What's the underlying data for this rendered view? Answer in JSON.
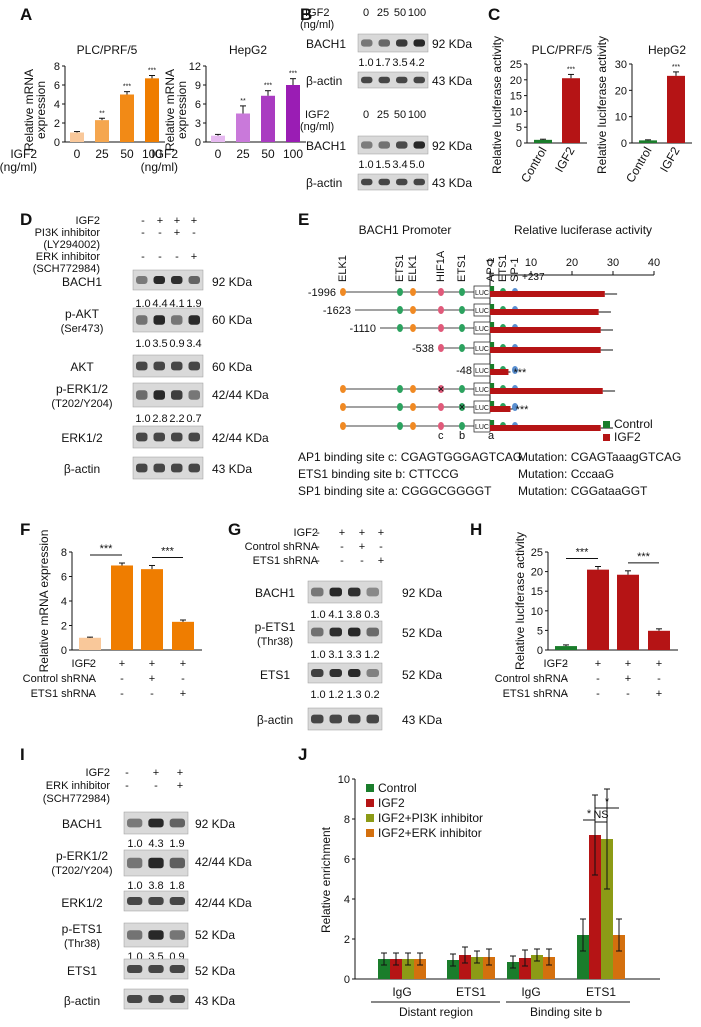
{
  "panel_labels": {
    "A": "A",
    "B": "B",
    "C": "C",
    "D": "D",
    "E": "E",
    "F": "F",
    "G": "G",
    "H": "H",
    "I": "I",
    "J": "J"
  },
  "colors": {
    "orange_light": "#f9c89a",
    "orange_mid": "#f5a64e",
    "orange_dark": "#f28a16",
    "orange_darkest": "#ef7d00",
    "purple_1": "#e6b9f0",
    "purple_2": "#c979da",
    "purple_3": "#a93bc1",
    "purple_4": "#9a1db4",
    "green": "#1a7d2b",
    "red": "#b51415",
    "olive": "#8c9b16",
    "brown": "#d4700e"
  },
  "chart_data": [
    {
      "id": "A1",
      "type": "bar",
      "title": "PLC/PRF/5",
      "ylabel": "Relative mRNA expression",
      "xlabel": "IGF2 (ng/ml)",
      "categories": [
        "0",
        "25",
        "50",
        "100"
      ],
      "values": [
        1.0,
        2.3,
        5.0,
        6.7
      ],
      "errors": [
        0.1,
        0.2,
        0.3,
        0.3
      ],
      "sig": [
        "",
        "**",
        "***",
        "***"
      ],
      "ylim": [
        0,
        8
      ],
      "yticks": [
        "0",
        "2",
        "4",
        "6",
        "8"
      ]
    },
    {
      "id": "A2",
      "type": "bar",
      "title": "HepG2",
      "ylabel": "Relative mRNA expression",
      "xlabel": "IGF2 (ng/ml)",
      "categories": [
        "0",
        "25",
        "50",
        "100"
      ],
      "values": [
        1.0,
        4.5,
        7.3,
        9.0
      ],
      "errors": [
        0.2,
        1.2,
        0.8,
        1.0
      ],
      "sig": [
        "",
        "**",
        "***",
        "***"
      ],
      "ylim": [
        0,
        12
      ],
      "yticks": [
        "0",
        "3",
        "6",
        "9",
        "12"
      ]
    },
    {
      "id": "C1",
      "type": "bar",
      "title": "PLC/PRF/5",
      "ylabel": "Relative luciferase activity",
      "categories": [
        "Control",
        "IGF2"
      ],
      "values": [
        1.0,
        20.5
      ],
      "errors": [
        0.2,
        1.2
      ],
      "sig": [
        "",
        "***"
      ],
      "ylim": [
        0,
        25
      ],
      "yticks": [
        "0",
        "5",
        "10",
        "15",
        "20",
        "25"
      ]
    },
    {
      "id": "C2",
      "type": "bar",
      "title": "HepG2",
      "ylabel": "Relative luciferase activity",
      "categories": [
        "Control",
        "IGF2"
      ],
      "values": [
        1.0,
        25.5
      ],
      "errors": [
        0.2,
        1.5
      ],
      "sig": [
        "",
        "***"
      ],
      "ylim": [
        0,
        30
      ],
      "yticks": [
        "0",
        "10",
        "20",
        "30"
      ]
    },
    {
      "id": "E",
      "type": "bar",
      "orientation": "horizontal",
      "title": "Relative luciferase activity",
      "xlim": [
        0,
        40
      ],
      "xticks": [
        "0",
        "10",
        "20",
        "30",
        "40"
      ],
      "constructs": [
        "-1996",
        "-1623",
        "-1110",
        "-538",
        "-48",
        "",
        "",
        ""
      ],
      "series": [
        {
          "name": "Control",
          "values": [
            1,
            1,
            1,
            1,
            1,
            1,
            1,
            1
          ]
        },
        {
          "name": "IGF2",
          "values": [
            28,
            26.5,
            27,
            27,
            4.5,
            27.5,
            5,
            27
          ],
          "errors": [
            3,
            3,
            3,
            3,
            0.5,
            3,
            0.5,
            3
          ]
        }
      ],
      "sig": [
        "",
        "",
        "",
        "",
        "***",
        "",
        "***",
        ""
      ]
    },
    {
      "id": "F",
      "type": "bar",
      "ylabel": "Relative mRNA expression",
      "values": [
        1.0,
        6.9,
        6.6,
        2.3
      ],
      "errors": [
        0.05,
        0.2,
        0.3,
        0.15
      ],
      "ylim": [
        0,
        8
      ],
      "yticks": [
        "0",
        "2",
        "4",
        "6",
        "8"
      ],
      "sig_pairs": [
        "***",
        "***"
      ]
    },
    {
      "id": "H",
      "type": "bar",
      "ylabel": "Relative luciferase activity",
      "values": [
        1.0,
        20.5,
        19.2,
        4.9
      ],
      "errors": [
        0.3,
        0.8,
        1.0,
        0.5
      ],
      "ylim": [
        0,
        25
      ],
      "yticks": [
        "0",
        "5",
        "10",
        "15",
        "20",
        "25"
      ],
      "sig_pairs": [
        "***",
        "***"
      ]
    },
    {
      "id": "J",
      "type": "bar",
      "ylabel": "Relative enrichment",
      "categories": [
        "IgG",
        "ETS1",
        "IgG",
        "ETS1"
      ],
      "groups": [
        "Distant region",
        "Binding site b"
      ],
      "series": [
        {
          "name": "Control",
          "values": [
            1.0,
            0.95,
            0.85,
            2.2
          ],
          "errors": [
            0.3,
            0.3,
            0.3,
            0.8
          ]
        },
        {
          "name": "IGF2",
          "values": [
            1.0,
            1.2,
            1.05,
            7.2
          ],
          "errors": [
            0.3,
            0.4,
            0.4,
            2.0
          ]
        },
        {
          "name": "IGF2+PI3K inhibitor",
          "values": [
            1.0,
            1.1,
            1.2,
            7.0
          ],
          "errors": [
            0.3,
            0.3,
            0.3,
            2.5
          ]
        },
        {
          "name": "IGF2+ERK inhibitor",
          "values": [
            1.0,
            1.1,
            1.1,
            2.2
          ],
          "errors": [
            0.3,
            0.4,
            0.4,
            0.8
          ]
        }
      ],
      "ylim": [
        0,
        10
      ],
      "yticks": [
        "0",
        "2",
        "4",
        "6",
        "8",
        "10"
      ],
      "sig": [
        "*",
        "NS",
        "*"
      ]
    }
  ],
  "panelA": {
    "xlab1": "IGF2",
    "xlab2": "(ng/ml)",
    "ylab1": "Relative mRNA",
    "ylab2": "expression"
  },
  "panelB": {
    "igf2": "IGF2",
    "ngml": "(ng/ml)",
    "doses": [
      "0",
      "25",
      "50",
      "100"
    ],
    "bach1": "BACH1",
    "actin": "β-actin",
    "kda92": "92 KDa",
    "kda43": "43 KDa",
    "quant1": [
      "1.0",
      "1.7",
      "3.5",
      "4.2"
    ],
    "quant2": [
      "1.0",
      "1.5",
      "3.4",
      "5.0"
    ]
  },
  "panelC": {
    "ylab": "Relative luciferase activity"
  },
  "panelD": {
    "treat_rows": [
      {
        "label": "IGF2",
        "marks": [
          "-",
          "+",
          "+",
          "+"
        ]
      },
      {
        "label": "PI3K inhibitor",
        "marks": [
          "-",
          "-",
          "+",
          "-"
        ]
      },
      {
        "label": "(LY294002)",
        "marks": []
      },
      {
        "label": "ERK inhibitor",
        "marks": [
          "-",
          "-",
          "-",
          "+"
        ]
      },
      {
        "label": "(SCH772984)",
        "marks": []
      }
    ],
    "blots": [
      {
        "name": "BACH1",
        "sub": "",
        "kda": "92 KDa",
        "quant": [
          "1.0",
          "4.4",
          "4.1",
          "1.9"
        ]
      },
      {
        "name": "p-AKT",
        "sub": "(Ser473)",
        "kda": "60 KDa",
        "quant": [
          "1.0",
          "3.5",
          "0.9",
          "3.4"
        ]
      },
      {
        "name": "AKT",
        "sub": "",
        "kda": "60 KDa",
        "quant": []
      },
      {
        "name": "p-ERK1/2",
        "sub": "(T202/Y204)",
        "kda": "42/44 KDa",
        "quant": [
          "1.0",
          "2.8",
          "2.2",
          "0.7"
        ]
      },
      {
        "name": "ERK1/2",
        "sub": "",
        "kda": "42/44 KDa",
        "quant": []
      },
      {
        "name": "β-actin",
        "sub": "",
        "kda": "43 KDa",
        "quant": []
      }
    ]
  },
  "panelE": {
    "promoter": "BACH1 Promoter",
    "luc": "LUC",
    "plus237": "+237",
    "sites": [
      "ELK1",
      "ETS1",
      "ELK1",
      "HIF1A",
      "ETS1",
      "AP-1",
      "ETS1",
      "SP-1"
    ],
    "site_letters": [
      "c",
      "b",
      "a"
    ],
    "legend": [
      "Control",
      "IGF2"
    ],
    "seqs": [
      {
        "left": "AP1 binding site c: CGAGTGGGAGTCAG",
        "right": "Mutation: CGAGTaaagGTCAG"
      },
      {
        "left": "ETS1 binding site b: CTTCCG",
        "right": "Mutation: CccaaG"
      },
      {
        "left": "SP1 binding site a: CGGGCGGGGT",
        "right": "Mutation: CGGataaGGT"
      }
    ]
  },
  "panelF": {
    "rows": [
      {
        "label": "IGF2",
        "marks": [
          "-",
          "+",
          "+",
          "+"
        ]
      },
      {
        "label": "Control shRNA",
        "marks": [
          "-",
          "-",
          "+",
          "-"
        ]
      },
      {
        "label": "ETS1 shRNA",
        "marks": [
          "-",
          "-",
          "-",
          "+"
        ]
      }
    ]
  },
  "panelG": {
    "treat_rows": [
      {
        "label": "IGF2",
        "marks": [
          "-",
          "+",
          "+",
          "+"
        ]
      },
      {
        "label": "Control shRNA",
        "marks": [
          "-",
          "-",
          "+",
          "-"
        ]
      },
      {
        "label": "ETS1 shRNA",
        "marks": [
          "-",
          "-",
          "-",
          "+"
        ]
      }
    ],
    "blots": [
      {
        "name": "BACH1",
        "sub": "",
        "kda": "92 KDa",
        "quant": [
          "1.0",
          "4.1",
          "3.8",
          "0.3"
        ]
      },
      {
        "name": "p-ETS1",
        "sub": "(Thr38)",
        "kda": "52 KDa",
        "quant": [
          "1.0",
          "3.1",
          "3.3",
          "1.2"
        ]
      },
      {
        "name": "ETS1",
        "sub": "",
        "kda": "52 KDa",
        "quant": [
          "1.0",
          "1.2",
          "1.3",
          "0.2"
        ]
      },
      {
        "name": "β-actin",
        "sub": "",
        "kda": "43 KDa",
        "quant": []
      }
    ]
  },
  "panelI": {
    "treat_rows": [
      {
        "label": "IGF2",
        "marks": [
          "-",
          "+",
          "+"
        ]
      },
      {
        "label": "ERK inhibitor",
        "marks": [
          "-",
          "-",
          "+"
        ]
      },
      {
        "label": "(SCH772984)",
        "marks": []
      }
    ],
    "blots": [
      {
        "name": "BACH1",
        "sub": "",
        "kda": "92 KDa",
        "quant": [
          "1.0",
          "4.3",
          "1.9"
        ]
      },
      {
        "name": "p-ERK1/2",
        "sub": "(T202/Y204)",
        "kda": "42/44 KDa",
        "quant": [
          "1.0",
          "3.8",
          "1.8"
        ]
      },
      {
        "name": "ERK1/2",
        "sub": "",
        "kda": "42/44 KDa",
        "quant": []
      },
      {
        "name": "p-ETS1",
        "sub": "(Thr38)",
        "kda": "52 KDa",
        "quant": [
          "1.0",
          "3.5",
          "0.9"
        ]
      },
      {
        "name": "ETS1",
        "sub": "",
        "kda": "52 KDa",
        "quant": []
      },
      {
        "name": "β-actin",
        "sub": "",
        "kda": "43 KDa",
        "quant": []
      }
    ]
  }
}
